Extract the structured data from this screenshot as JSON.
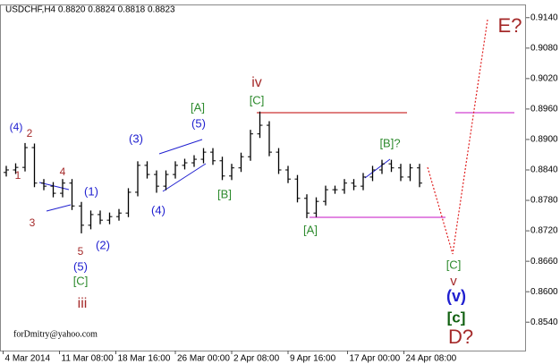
{
  "chart_data": {
    "type": "ohlc",
    "title": "USDCHF,H4  0.8820 0.8824 0.8818 0.8823",
    "color": "#000000",
    "x": [
      2,
      5,
      8,
      11,
      14,
      17,
      20,
      23,
      26,
      29,
      32,
      35,
      38,
      41,
      44,
      47,
      50,
      53,
      56,
      59,
      62,
      65,
      68,
      71,
      74,
      77,
      80,
      83,
      86,
      89,
      92,
      95,
      98,
      101,
      104,
      107,
      110,
      113,
      116,
      119,
      122,
      125,
      128,
      131,
      134
    ],
    "open": [
      0.8835,
      0.884,
      0.8845,
      0.8884,
      0.8814,
      0.8808,
      0.8794,
      0.8814,
      0.8769,
      0.8731,
      0.8752,
      0.8741,
      0.8748,
      0.8755,
      0.8796,
      0.8849,
      0.8831,
      0.8808,
      0.8831,
      0.8849,
      0.8854,
      0.8861,
      0.8875,
      0.8858,
      0.8828,
      0.8844,
      0.8866,
      0.8911,
      0.8928,
      0.8875,
      0.884,
      0.8822,
      0.8784,
      0.8755,
      0.8778,
      0.8801,
      0.8801,
      0.8814,
      0.8808,
      0.8826,
      0.884,
      0.8852,
      0.8844,
      0.8826,
      0.8844
    ],
    "high": [
      0.8848,
      0.8853,
      0.8893,
      0.8892,
      0.8822,
      0.8816,
      0.8822,
      0.8822,
      0.8777,
      0.876,
      0.876,
      0.8756,
      0.8763,
      0.8804,
      0.8857,
      0.8857,
      0.8839,
      0.8839,
      0.8857,
      0.8862,
      0.8869,
      0.8883,
      0.8883,
      0.8866,
      0.8852,
      0.8874,
      0.8919,
      0.8955,
      0.8936,
      0.8883,
      0.8848,
      0.883,
      0.8792,
      0.8786,
      0.8809,
      0.8809,
      0.8822,
      0.8822,
      0.8834,
      0.8848,
      0.886,
      0.886,
      0.8852,
      0.8852,
      0.8852
    ],
    "low": [
      0.8827,
      0.8832,
      0.8837,
      0.8806,
      0.88,
      0.8786,
      0.8786,
      0.8761,
      0.8715,
      0.8723,
      0.8733,
      0.8733,
      0.874,
      0.8747,
      0.8788,
      0.8823,
      0.8795,
      0.88,
      0.8823,
      0.8841,
      0.8846,
      0.8853,
      0.885,
      0.882,
      0.882,
      0.8836,
      0.8858,
      0.8903,
      0.8867,
      0.8832,
      0.8814,
      0.8776,
      0.8745,
      0.8747,
      0.877,
      0.8793,
      0.8793,
      0.88,
      0.88,
      0.8818,
      0.8832,
      0.8836,
      0.8818,
      0.8818,
      0.8806
    ],
    "close": [
      0.884,
      0.8845,
      0.8884,
      0.8814,
      0.8808,
      0.8794,
      0.8814,
      0.8769,
      0.8731,
      0.8752,
      0.8741,
      0.8748,
      0.8755,
      0.8796,
      0.8849,
      0.8831,
      0.8808,
      0.8831,
      0.8849,
      0.8854,
      0.8861,
      0.8875,
      0.8858,
      0.8828,
      0.8844,
      0.8866,
      0.8911,
      0.8928,
      0.8875,
      0.884,
      0.8822,
      0.8784,
      0.8755,
      0.8778,
      0.8801,
      0.8801,
      0.8814,
      0.8808,
      0.8826,
      0.884,
      0.8852,
      0.8844,
      0.8826,
      0.8844,
      0.8814
    ],
    "xlim": [
      0,
      168
    ],
    "ylim": [
      0.8484,
      0.9166
    ],
    "xticks": [
      {
        "value": 1,
        "label": "4 Mar 2014"
      },
      {
        "value": 19,
        "label": "11 Mar 08:00"
      },
      {
        "value": 37,
        "label": "18 Mar 16:00"
      },
      {
        "value": 56,
        "label": "26 Mar 00:00"
      },
      {
        "value": 74,
        "label": "2 Apr 08:00"
      },
      {
        "value": 92,
        "label": "9 Apr 16:00"
      },
      {
        "value": 111,
        "label": "17 Apr 00:00"
      },
      {
        "value": 129,
        "label": "24 Apr 08:00"
      }
    ],
    "yticks": [
      {
        "value": 0.914,
        "label": "0.9140"
      },
      {
        "value": 0.908,
        "label": "0.9080"
      },
      {
        "value": 0.902,
        "label": "0.9020"
      },
      {
        "value": 0.896,
        "label": "0.8960"
      },
      {
        "value": 0.89,
        "label": "0.8900"
      },
      {
        "value": 0.884,
        "label": "0.8840"
      },
      {
        "value": 0.878,
        "label": "0.8780"
      },
      {
        "value": 0.872,
        "label": "0.8720"
      },
      {
        "value": 0.866,
        "label": "0.8660"
      },
      {
        "value": 0.86,
        "label": "0.8600"
      },
      {
        "value": 0.854,
        "label": "0.8540"
      }
    ],
    "annotations": [
      {
        "text": "(4)",
        "color": "#2020d0"
      },
      {
        "text": "2",
        "color": "#a52a2a"
      },
      {
        "text": "1",
        "color": "#a52a2a"
      },
      {
        "text": "4",
        "color": "#a52a2a"
      },
      {
        "text": "3",
        "color": "#a52a2a"
      },
      {
        "text": "(1)",
        "color": "#2020d0"
      },
      {
        "text": "5",
        "color": "#a52a2a"
      },
      {
        "text": "(2)",
        "color": "#2020d0"
      },
      {
        "text": "(5)",
        "color": "#2020d0"
      },
      {
        "text": "[C]",
        "color": "#2e8b2e"
      },
      {
        "text": "iii",
        "color": "#a52a2a"
      },
      {
        "text": "(3)",
        "color": "#2020d0"
      },
      {
        "text": "(4)",
        "color": "#2020d0"
      },
      {
        "text": "[A]",
        "color": "#2e8b2e"
      },
      {
        "text": "(5)",
        "color": "#2020d0"
      },
      {
        "text": "[B]",
        "color": "#2e8b2e"
      },
      {
        "text": "iv",
        "color": "#a52a2a"
      },
      {
        "text": "[C]",
        "color": "#2e8b2e"
      },
      {
        "text": "[A]",
        "color": "#2e8b2e"
      },
      {
        "text": "[B]?",
        "color": "#2e8b2e"
      },
      {
        "text": "[C]",
        "color": "#2e8b2e"
      },
      {
        "text": "v",
        "color": "#a52a2a"
      },
      {
        "text": "(v)",
        "color": "#2020d0"
      },
      {
        "text": "[c]",
        "color": "#106010"
      },
      {
        "text": "D?",
        "color": "#a52a2a"
      },
      {
        "text": "E?",
        "color": "#a52a2a"
      }
    ],
    "watermark": "forDmitry@yahoo.com"
  }
}
